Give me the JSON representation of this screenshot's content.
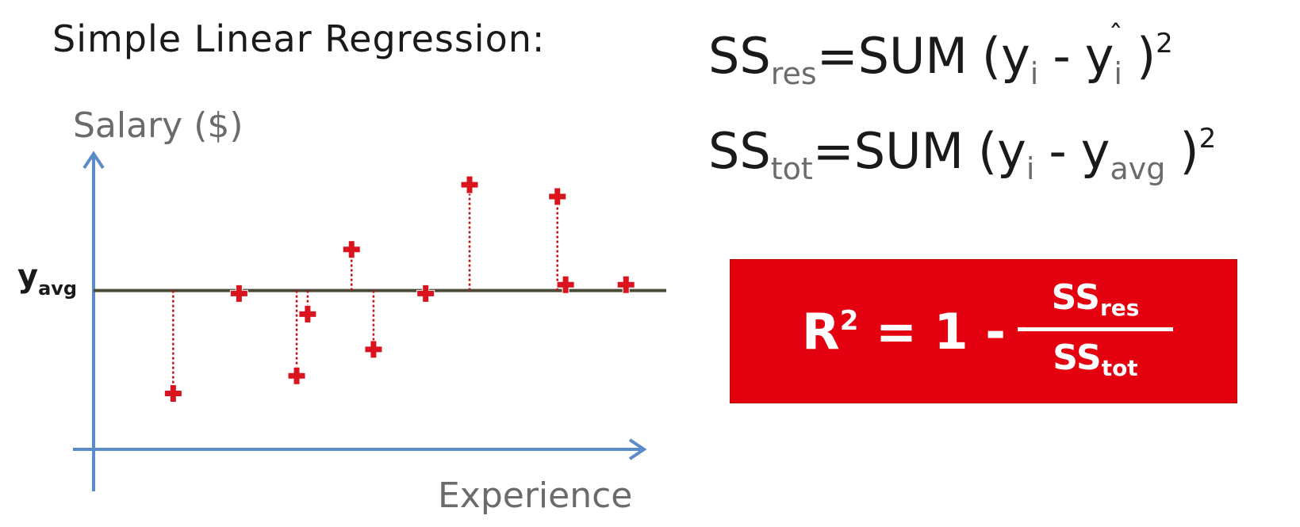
{
  "title": "Simple Linear Regression:",
  "axes": {
    "y_label": "Salary ($)",
    "x_label": "Experience",
    "y_avg_label": "y",
    "y_avg_sub": "avg"
  },
  "chart_data": {
    "type": "scatter",
    "xlabel": "Experience",
    "ylabel": "Salary ($)",
    "xlim": [
      0,
      100
    ],
    "ylim": [
      0,
      100
    ],
    "y_avg": 54,
    "points": [
      {
        "x": 14.5,
        "y": 19
      },
      {
        "x": 26.5,
        "y": 53
      },
      {
        "x": 37,
        "y": 25
      },
      {
        "x": 39,
        "y": 46
      },
      {
        "x": 47,
        "y": 68
      },
      {
        "x": 51,
        "y": 34
      },
      {
        "x": 60.5,
        "y": 53
      },
      {
        "x": 68.5,
        "y": 90
      },
      {
        "x": 84.5,
        "y": 86
      },
      {
        "x": 86,
        "y": 56
      },
      {
        "x": 97,
        "y": 56
      }
    ],
    "colors": {
      "axis": "#5b8cc9",
      "avg_line": "#4a4a35",
      "point": "#d9141e",
      "residual": "#c0101a"
    }
  },
  "formulas": {
    "ss_res": {
      "ss": "SS",
      "sub": "res",
      "eq": "=",
      "sum": "SUM",
      "open": "(y",
      "i": "i",
      "minus": "-",
      "y": "y",
      "hat": "ˆ",
      "close": ")",
      "pow": "2"
    },
    "ss_tot": {
      "ss": "SS",
      "sub": "tot",
      "eq": "=",
      "sum": "SUM",
      "open": "(y",
      "i": "i",
      "minus": "-",
      "y": "y",
      "avg": "avg",
      "close": ")",
      "pow": "2"
    }
  },
  "r2": {
    "r": "R",
    "pow": "2",
    "rest": "= 1 -",
    "num": "SS",
    "num_sub": "res",
    "den": "SS",
    "den_sub": "tot",
    "box_color": "#e3000f"
  }
}
